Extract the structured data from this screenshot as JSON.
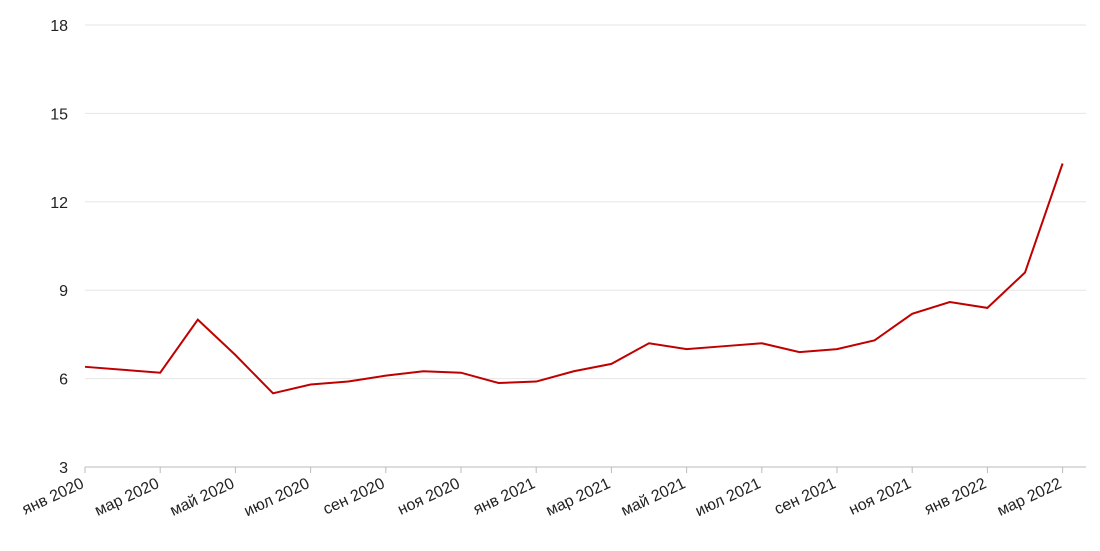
{
  "chart_data": {
    "type": "line",
    "x": [
      "2020-01",
      "2020-02",
      "2020-03",
      "2020-04",
      "2020-05",
      "2020-06",
      "2020-07",
      "2020-08",
      "2020-09",
      "2020-10",
      "2020-11",
      "2020-12",
      "2021-01",
      "2021-02",
      "2021-03",
      "2021-04",
      "2021-05",
      "2021-06",
      "2021-07",
      "2021-08",
      "2021-09",
      "2021-10",
      "2021-11",
      "2021-12",
      "2022-01",
      "2022-02",
      "2022-03"
    ],
    "series": [
      {
        "color": "#c00000",
        "values": [
          6.4,
          6.3,
          6.2,
          8.0,
          6.8,
          5.5,
          5.8,
          5.9,
          6.1,
          6.25,
          6.2,
          5.85,
          5.9,
          6.25,
          6.5,
          7.2,
          7.0,
          7.1,
          7.2,
          6.9,
          7.0,
          7.3,
          8.2,
          8.6,
          8.4,
          9.6,
          13.3
        ]
      }
    ],
    "ylim": [
      3,
      18
    ],
    "yticks": [
      3,
      6,
      9,
      12,
      15,
      18
    ],
    "grid": true,
    "xticks": [
      {
        "value": "2020-01",
        "label": "янв 2020"
      },
      {
        "value": "2020-03",
        "label": "мар 2020"
      },
      {
        "value": "2020-05",
        "label": "май 2020"
      },
      {
        "value": "2020-07",
        "label": "июл 2020"
      },
      {
        "value": "2020-09",
        "label": "сен 2020"
      },
      {
        "value": "2020-11",
        "label": "ноя 2020"
      },
      {
        "value": "2021-01",
        "label": "янв 2021"
      },
      {
        "value": "2021-03",
        "label": "мар 2021"
      },
      {
        "value": "2021-05",
        "label": "май 2021"
      },
      {
        "value": "2021-07",
        "label": "июл 2021"
      },
      {
        "value": "2021-09",
        "label": "сен 2021"
      },
      {
        "value": "2021-11",
        "label": "ноя 2021"
      },
      {
        "value": "2022-01",
        "label": "янв 2022"
      },
      {
        "value": "2022-03",
        "label": "мар 2022"
      }
    ]
  }
}
